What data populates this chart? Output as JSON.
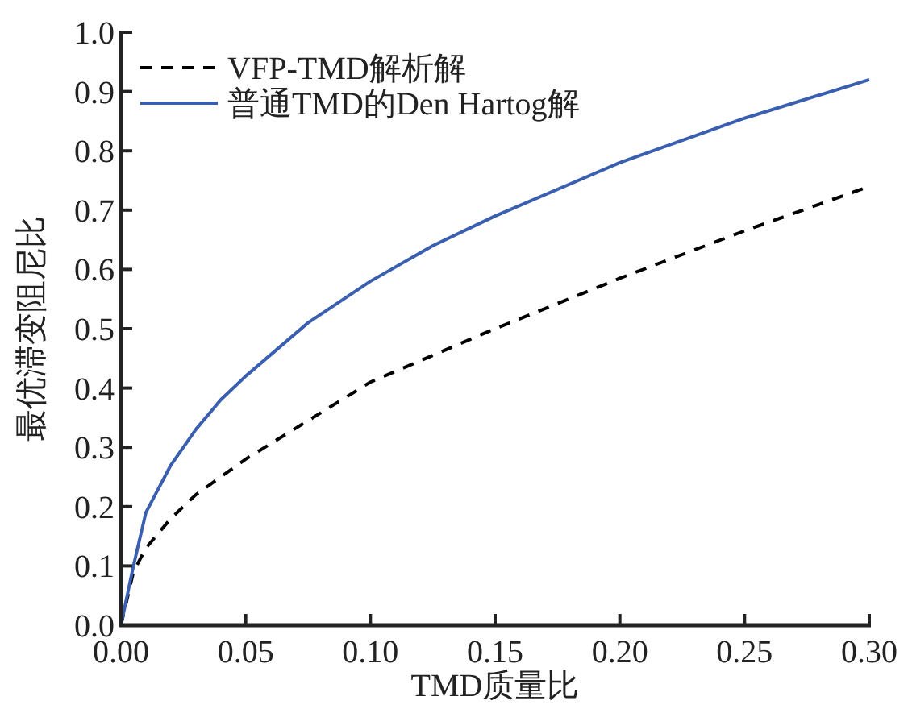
{
  "chart_data": {
    "type": "line",
    "xlabel": "TMD质量比",
    "ylabel": "最优滞变阻尼比",
    "x": [
      0,
      0.005,
      0.01,
      0.02,
      0.03,
      0.04,
      0.05,
      0.075,
      0.1,
      0.125,
      0.15,
      0.2,
      0.25,
      0.3
    ],
    "series": [
      {
        "name": "VFP-TMD解析解",
        "color": "#000000",
        "line_style": "dashed",
        "values": [
          0,
          0.09,
          0.13,
          0.18,
          0.22,
          0.25,
          0.28,
          0.345,
          0.41,
          0.455,
          0.5,
          0.585,
          0.665,
          0.74
        ]
      },
      {
        "name": "普通TMD的Den Hartog解",
        "color": "#3a5fb0",
        "line_style": "solid",
        "values": [
          0,
          0.1,
          0.19,
          0.27,
          0.33,
          0.38,
          0.42,
          0.51,
          0.58,
          0.64,
          0.69,
          0.78,
          0.855,
          0.92
        ]
      }
    ],
    "xlim": [
      0,
      0.3
    ],
    "ylim": [
      0,
      1.0
    ],
    "xticks": [
      {
        "value": 0,
        "label": "0.00"
      },
      0.05,
      {
        "value": 0.1,
        "label": "0.10"
      },
      0.15,
      {
        "value": 0.2,
        "label": "0.20"
      },
      0.25,
      {
        "value": 0.3,
        "label": "0.30"
      }
    ],
    "yticks": [
      {
        "value": 0,
        "label": "0.0"
      },
      0.1,
      0.2,
      0.3,
      0.4,
      0.5,
      0.6,
      0.7,
      0.8,
      0.9,
      {
        "value": 1,
        "label": "1.0"
      }
    ],
    "legend": "top left",
    "marker": "none"
  }
}
